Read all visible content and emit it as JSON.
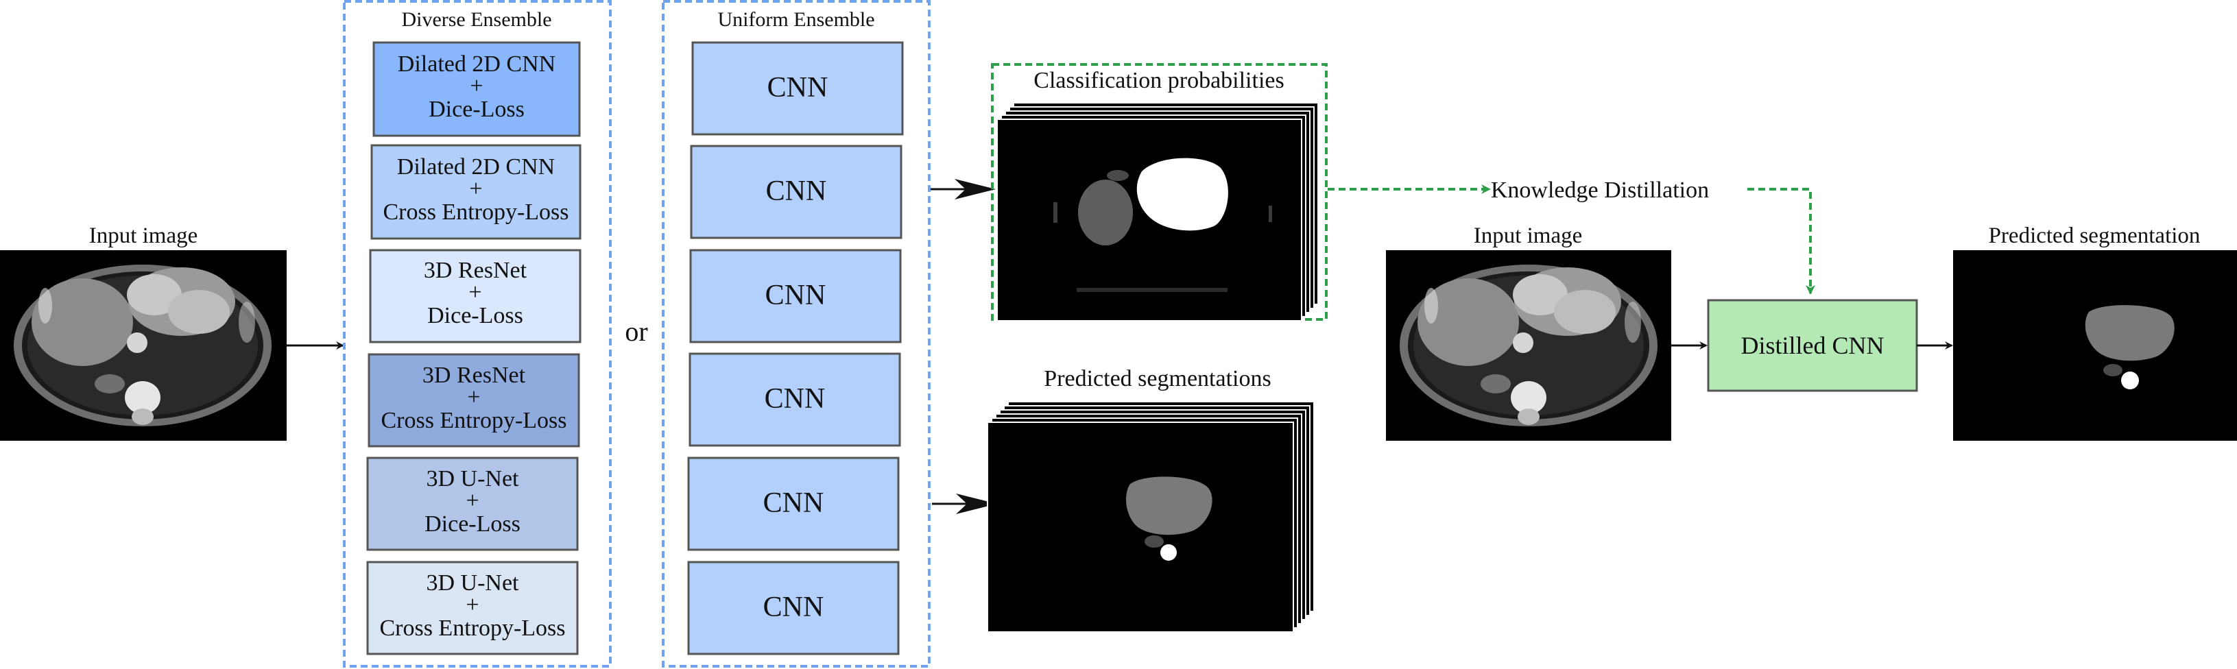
{
  "input": {
    "label": "Input image"
  },
  "diverse_ensemble": {
    "title": "Diverse Ensemble",
    "models": [
      {
        "line1": "Dilated 2D CNN",
        "plus": "+",
        "line2": "Dice-Loss",
        "fill": "#8ab6fb"
      },
      {
        "line1": "Dilated 2D CNN",
        "plus": "+",
        "line2": "Cross Entropy-Loss",
        "fill": "#b2cffc"
      },
      {
        "line1": "3D ResNet",
        "plus": "+",
        "line2": "Dice-Loss",
        "fill": "#dbe7fd"
      },
      {
        "line1": "3D ResNet",
        "plus": "+",
        "line2": "Cross Entropy-Loss",
        "fill": "#8fabdd"
      },
      {
        "line1": "3D U-Net",
        "plus": "+",
        "line2": "Dice-Loss",
        "fill": "#b1c5e9"
      },
      {
        "line1": "3D U-Net",
        "plus": "+",
        "line2": "Cross Entropy-Loss",
        "fill": "#dae5f4"
      }
    ]
  },
  "or_label": "or",
  "uniform_ensemble": {
    "title": "Uniform Ensemble",
    "models": [
      "CNN",
      "CNN",
      "CNN",
      "CNN",
      "CNN",
      "CNN"
    ],
    "fill": "#b3cffb"
  },
  "outputs": {
    "probabilities_label": "Classification probabilities",
    "segmentations_label": "Predicted segmentations"
  },
  "distillation": {
    "label": "Knowledge Distillation",
    "input_label": "Input image",
    "student_label": "Distilled CNN",
    "student_fill": "#b4e8b4",
    "output_label": "Predicted segmentation"
  },
  "colors": {
    "ensemble_border": "#6fa3ef",
    "distill_arrow": "#2e9e4a",
    "box_stroke": "#555555",
    "arrow": "#111111"
  }
}
